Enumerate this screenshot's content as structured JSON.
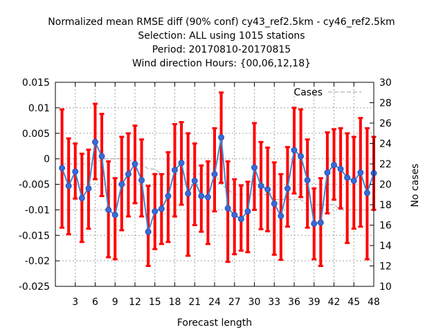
{
  "chart_data": {
    "type": "line",
    "title_lines": [
      "Normalized mean RMSE diff (90% conf) cy43_ref2.5km - cy46_ref2.5km",
      "Selection: ALL using  1015 stations",
      "Period: 20170810-20170815",
      "Wind direction    Hours: {00,06,12,18}"
    ],
    "xlabel": "Forecast length",
    "ylabel_right": "No cases",
    "xlim": [
      0,
      48
    ],
    "ylim": [
      -0.025,
      0.015
    ],
    "y2lim": [
      10,
      30
    ],
    "x_ticks": [
      3,
      6,
      9,
      12,
      15,
      18,
      21,
      24,
      27,
      30,
      33,
      36,
      39,
      42,
      45,
      48
    ],
    "y_ticks": [
      -0.025,
      -0.02,
      -0.015,
      -0.01,
      -0.005,
      0,
      0.005,
      0.01,
      0.015
    ],
    "y_tick_labels": [
      "-0.025",
      "-0.02",
      "-0.015",
      "-0.01",
      "-0.005",
      "0",
      "0.005",
      "0.01",
      "0.015"
    ],
    "y2_ticks": [
      10,
      12,
      14,
      16,
      18,
      20,
      22,
      24,
      26,
      28,
      30
    ],
    "grid": true,
    "legend_position": "top-right",
    "x": [
      1,
      2,
      3,
      4,
      5,
      6,
      7,
      8,
      9,
      10,
      11,
      12,
      13,
      14,
      15,
      16,
      17,
      18,
      19,
      20,
      21,
      22,
      23,
      24,
      25,
      26,
      27,
      28,
      29,
      30,
      31,
      32,
      33,
      34,
      35,
      36,
      37,
      38,
      39,
      40,
      41,
      42,
      43,
      44,
      45,
      46,
      47,
      48
    ],
    "mean": [
      -0.0018,
      -0.0053,
      -0.0025,
      -0.0077,
      -0.0058,
      0.0033,
      0.0005,
      -0.01,
      -0.011,
      -0.005,
      -0.003,
      -0.001,
      -0.0042,
      -0.0143,
      -0.0103,
      -0.0098,
      -0.0073,
      -0.0022,
      -0.0008,
      -0.0068,
      -0.0043,
      -0.0073,
      -0.0075,
      -0.003,
      0.0042,
      -0.0097,
      -0.011,
      -0.0118,
      -0.0103,
      -0.0017,
      -0.0053,
      -0.006,
      -0.0088,
      -0.0112,
      -0.0058,
      0.0017,
      0.0005,
      -0.0042,
      -0.0127,
      -0.0125,
      -0.0027,
      -0.0012,
      -0.002,
      -0.0037,
      -0.0043,
      -0.0027,
      -0.0067,
      -0.0028
    ],
    "upper": [
      0.0097,
      0.004,
      0.003,
      0.001,
      0.0018,
      0.0108,
      0.0088,
      -0.0005,
      -0.0038,
      0.0043,
      0.005,
      0.0065,
      0.0038,
      -0.0053,
      -0.003,
      -0.003,
      0.0013,
      0.0068,
      0.0072,
      0.005,
      0.003,
      -0.0013,
      -0.0005,
      0.006,
      0.013,
      -0.0005,
      -0.004,
      -0.0052,
      -0.0045,
      0.007,
      0.0033,
      0.0022,
      -0.0007,
      -0.003,
      0.0023,
      0.01,
      0.0097,
      0.0038,
      -0.0058,
      -0.0038,
      0.0052,
      0.0058,
      0.006,
      0.005,
      0.0043,
      0.008,
      0.006,
      0.0043
    ],
    "lower": [
      -0.0135,
      -0.0148,
      -0.0078,
      -0.0163,
      -0.0137,
      -0.004,
      -0.0073,
      -0.0193,
      -0.0197,
      -0.014,
      -0.0113,
      -0.0087,
      -0.0113,
      -0.021,
      -0.0177,
      -0.0167,
      -0.0163,
      -0.0113,
      -0.009,
      -0.019,
      -0.013,
      -0.0143,
      -0.0167,
      -0.0103,
      -0.0047,
      -0.0202,
      -0.0187,
      -0.018,
      -0.0183,
      -0.01,
      -0.0138,
      -0.0142,
      -0.0188,
      -0.0198,
      -0.0133,
      -0.0068,
      -0.0075,
      -0.0135,
      -0.0197,
      -0.021,
      -0.0107,
      -0.008,
      -0.0097,
      -0.0165,
      -0.0137,
      -0.0133,
      -0.0197,
      -0.01
    ],
    "cases_series": {
      "name": "Cases",
      "x": [
        1,
        2,
        3,
        4,
        5,
        6,
        7,
        8,
        9,
        10,
        11,
        12,
        13,
        14,
        15,
        16,
        17,
        18,
        19,
        20,
        21,
        22,
        23,
        24,
        25,
        26,
        27,
        28,
        29,
        30,
        31,
        32,
        33,
        34,
        35,
        36,
        37,
        38,
        39,
        40,
        41,
        42,
        43,
        44,
        45,
        46,
        47,
        48
      ],
      "values": [
        22,
        22,
        22,
        22,
        22,
        22,
        22.5,
        22.5,
        22.5,
        22.5,
        22.5,
        22,
        22,
        21.5,
        21.5,
        21,
        21,
        21,
        21,
        21,
        21,
        21,
        21,
        21,
        20,
        19.5,
        19,
        19,
        19,
        19,
        19,
        19,
        18.5,
        18.5,
        18.5,
        18.5,
        18.5,
        18,
        18,
        18,
        18,
        18,
        17.5,
        17.5,
        17.5,
        17.5,
        17.5,
        17.5
      ]
    },
    "colors": {
      "error_bars": "#ff0000",
      "mean_line": "#3a8ad8",
      "markers": "#3a6ad8",
      "cases_line": "#a0a0a0",
      "grid": "#a0a0a0"
    }
  }
}
